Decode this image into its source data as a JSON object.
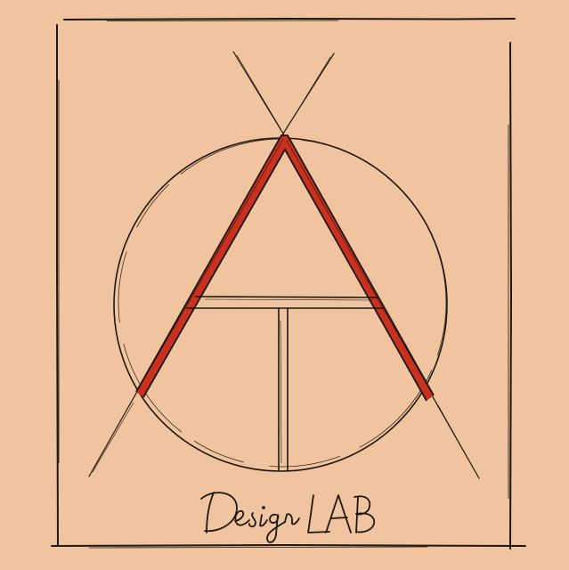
{
  "logo": {
    "wordmark_script": "Design",
    "wordmark_caps": "LAB",
    "colors": {
      "background": "#efc49e",
      "ink": "#1f1711",
      "accent": "#c8301f"
    }
  }
}
